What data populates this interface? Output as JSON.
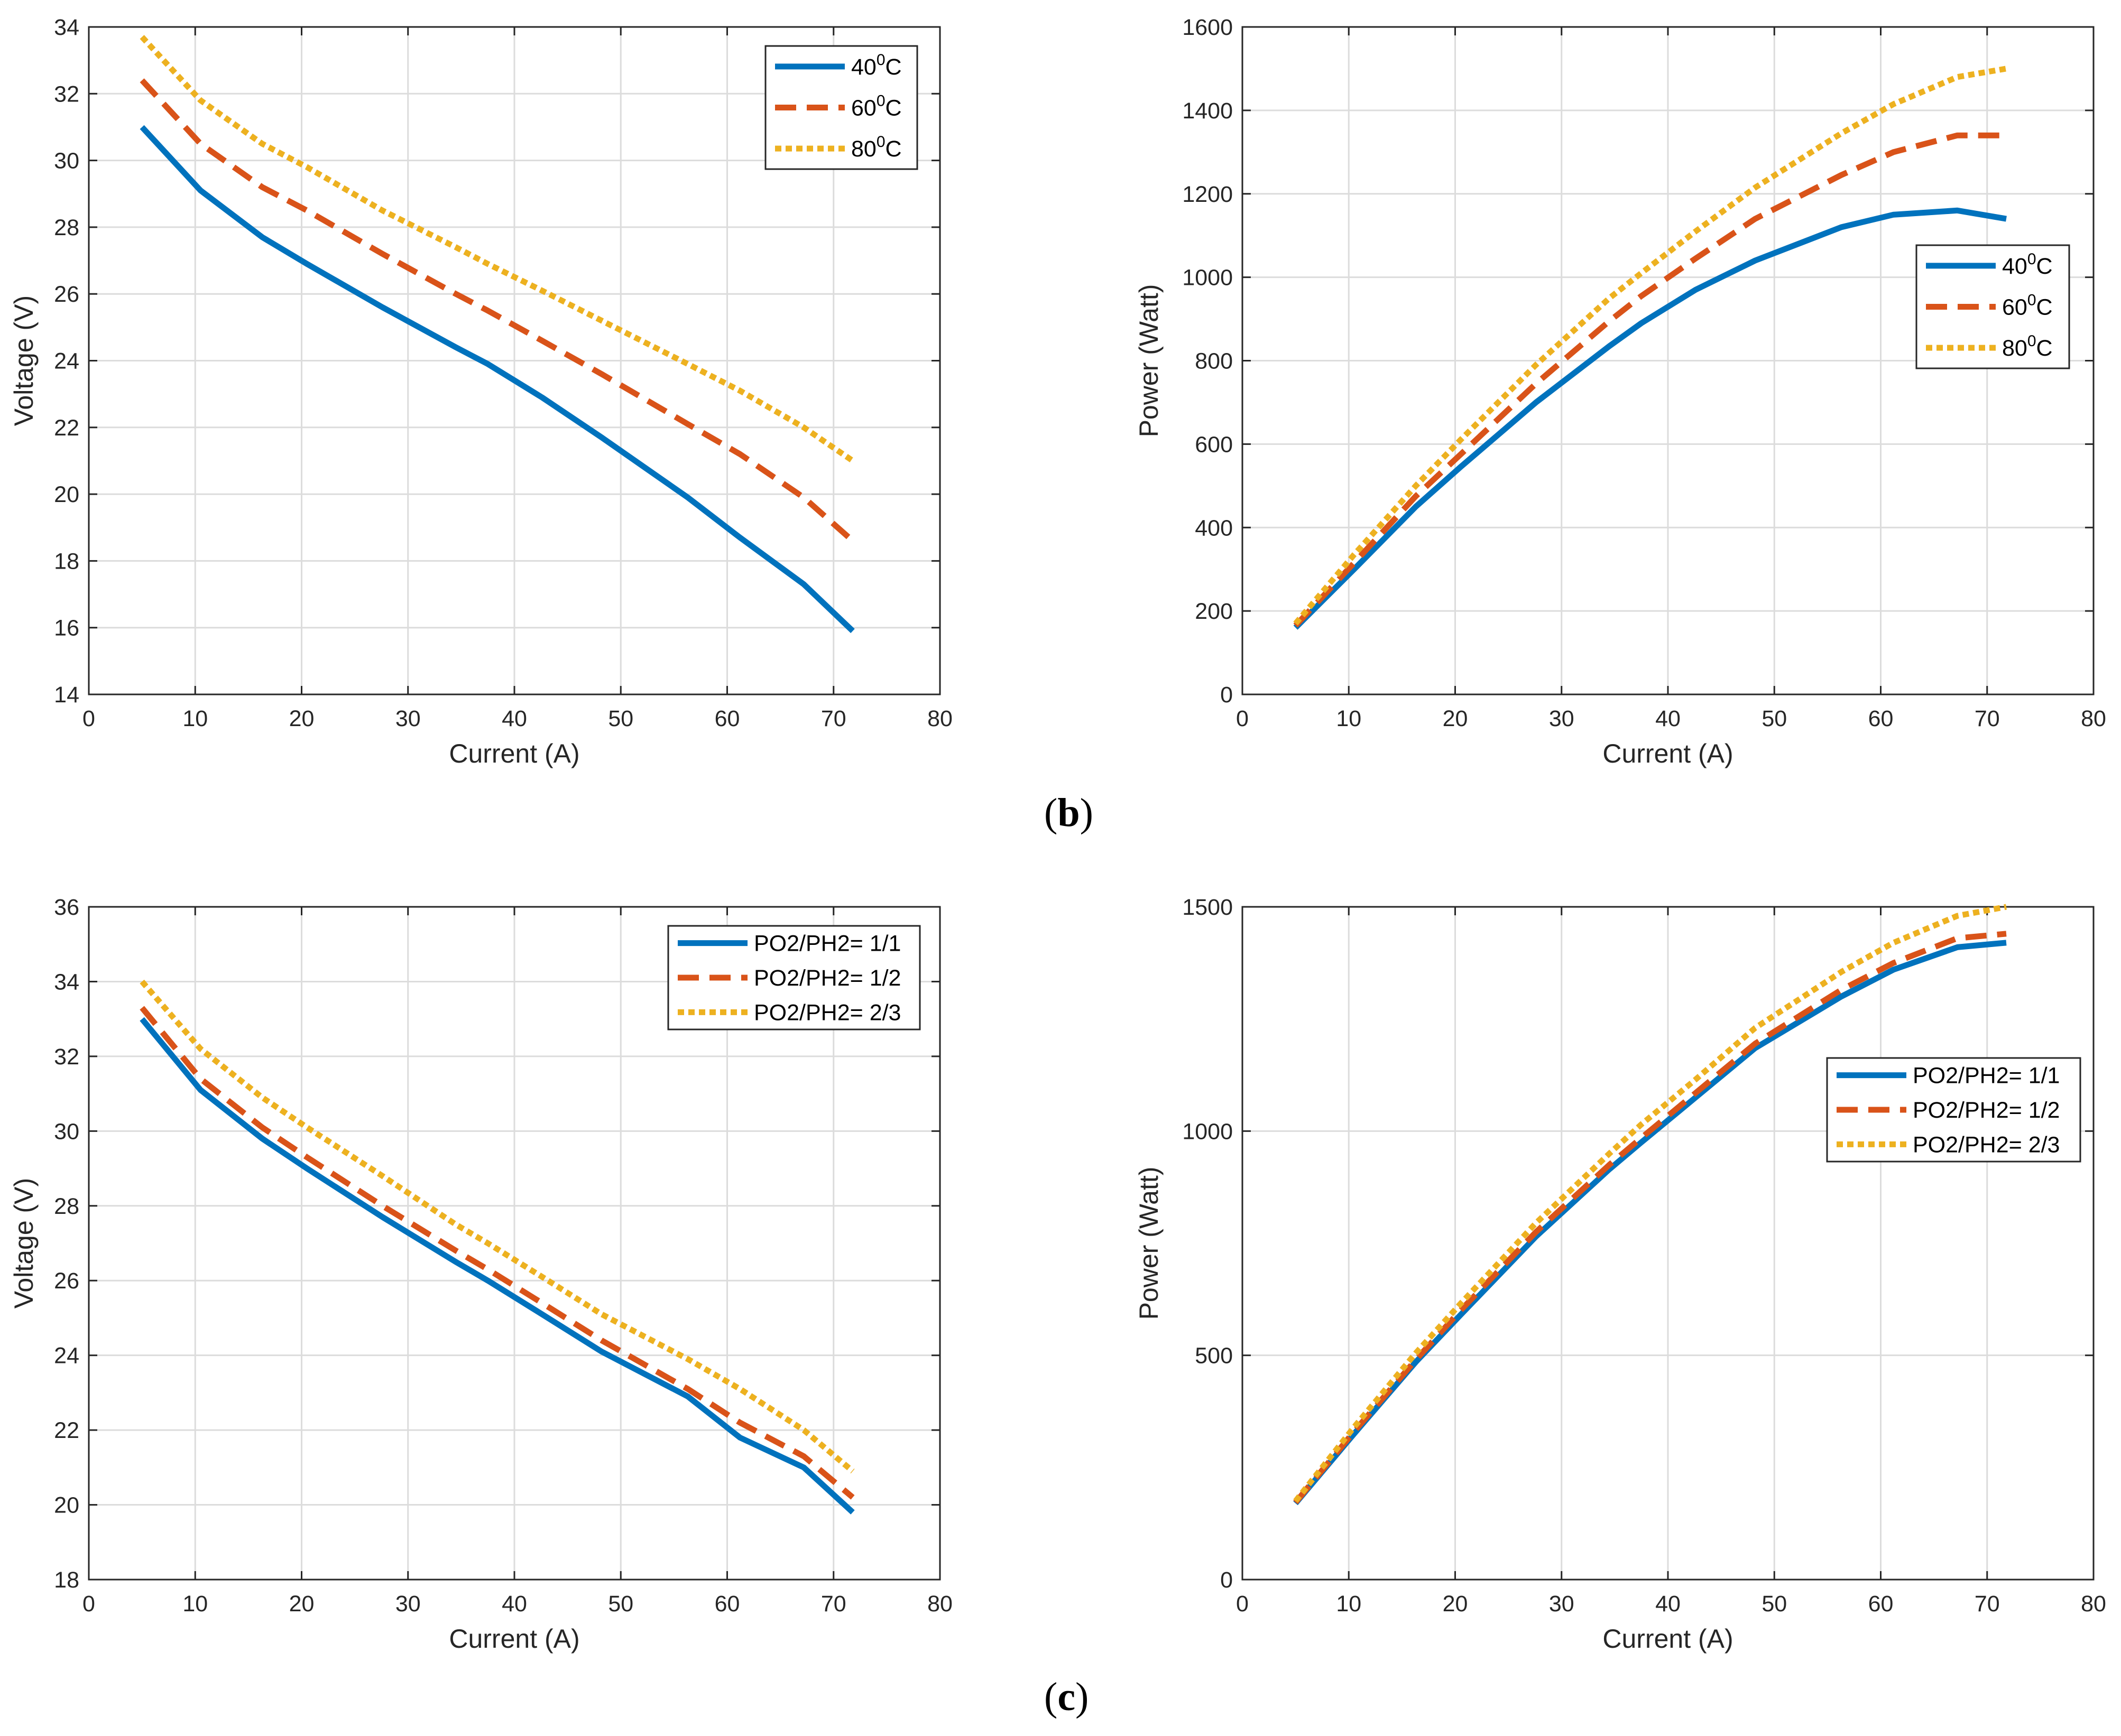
{
  "colors": {
    "s1": "#0072bd",
    "s2": "#d95319",
    "s3": "#edb120",
    "grid": "#dcdcdc",
    "axis": "#262626"
  },
  "captions": [
    {
      "open": "(",
      "letter": "b",
      "close": ")"
    },
    {
      "open": "(",
      "letter": "c",
      "close": ")"
    }
  ],
  "chart_data": [
    {
      "type": "line",
      "xlabel": "Current (A)",
      "ylabel": "Voltage (V)",
      "xlim": [
        0,
        80
      ],
      "ylim": [
        14,
        34
      ],
      "xticks": [
        0,
        10,
        20,
        30,
        40,
        50,
        60,
        70,
        80
      ],
      "yticks": [
        14,
        16,
        18,
        20,
        22,
        24,
        26,
        28,
        30,
        32,
        34
      ],
      "grid": true,
      "legend_position": "top-right",
      "x": [
        5,
        10.5,
        16.3,
        20.5,
        27.6,
        34.5,
        37.5,
        42.6,
        48.2,
        56.3,
        61.2,
        67.2,
        71.8
      ],
      "series": [
        {
          "base": "40",
          "sup": "0",
          "unit": "C",
          "style": "solid",
          "values": [
            31.0,
            29.1,
            27.7,
            26.9,
            25.6,
            24.4,
            23.9,
            22.9,
            21.7,
            19.9,
            18.7,
            17.3,
            15.9
          ]
        },
        {
          "base": "60",
          "sup": "0",
          "unit": "C",
          "style": "dashed",
          "values": [
            32.4,
            30.5,
            29.2,
            28.5,
            27.2,
            26.0,
            25.5,
            24.6,
            23.6,
            22.1,
            21.2,
            19.9,
            18.6
          ]
        },
        {
          "base": "80",
          "sup": "0",
          "unit": "C",
          "style": "dotted",
          "values": [
            33.7,
            31.8,
            30.5,
            29.8,
            28.5,
            27.4,
            26.9,
            26.1,
            25.2,
            23.9,
            23.1,
            22.0,
            21.0
          ]
        }
      ]
    },
    {
      "type": "line",
      "xlabel": "Current (A)",
      "ylabel": "Power (Watt)",
      "xlim": [
        0,
        80
      ],
      "ylim": [
        0,
        1600
      ],
      "xticks": [
        0,
        10,
        20,
        30,
        40,
        50,
        60,
        70,
        80
      ],
      "yticks": [
        0,
        200,
        400,
        600,
        800,
        1000,
        1200,
        1400,
        1600
      ],
      "grid": true,
      "legend_position": "right",
      "x": [
        5,
        10.5,
        16.3,
        20.5,
        27.6,
        34.5,
        37.5,
        42.6,
        48.2,
        56.3,
        61.2,
        67.2,
        71.8
      ],
      "series": [
        {
          "base": "40",
          "sup": "0",
          "unit": "C",
          "style": "solid",
          "values": [
            160,
            300,
            450,
            545,
            700,
            835,
            890,
            970,
            1040,
            1120,
            1150,
            1160,
            1140
          ]
        },
        {
          "base": "60",
          "sup": "0",
          "unit": "C",
          "style": "dashed",
          "values": [
            165,
            315,
            475,
            575,
            745,
            895,
            955,
            1045,
            1140,
            1245,
            1300,
            1340,
            1340
          ]
        },
        {
          "base": "80",
          "sup": "0",
          "unit": "C",
          "style": "dotted",
          "values": [
            170,
            335,
            500,
            610,
            790,
            950,
            1010,
            1110,
            1215,
            1345,
            1415,
            1480,
            1500
          ]
        }
      ]
    },
    {
      "type": "line",
      "xlabel": "Current (A)",
      "ylabel": "Voltage (V)",
      "xlim": [
        0,
        80
      ],
      "ylim": [
        18,
        36
      ],
      "xticks": [
        0,
        10,
        20,
        30,
        40,
        50,
        60,
        70,
        80
      ],
      "yticks": [
        18,
        20,
        22,
        24,
        26,
        28,
        30,
        32,
        34,
        36
      ],
      "grid": true,
      "legend_position": "top-right",
      "x": [
        5,
        10.5,
        16.3,
        20.5,
        27.6,
        34.5,
        37.5,
        42.6,
        48.2,
        56.3,
        61.2,
        67.2,
        71.8
      ],
      "series": [
        {
          "base": "PO2/PH2= 1/1",
          "sup": "",
          "unit": "",
          "style": "solid",
          "values": [
            33.0,
            31.1,
            29.8,
            29.0,
            27.7,
            26.5,
            26.0,
            25.1,
            24.1,
            22.9,
            21.8,
            21.0,
            19.8
          ]
        },
        {
          "base": "PO2/PH2= 1/2",
          "sup": "",
          "unit": "",
          "style": "dashed",
          "values": [
            33.3,
            31.4,
            30.1,
            29.3,
            28.0,
            26.8,
            26.3,
            25.4,
            24.4,
            23.1,
            22.2,
            21.3,
            20.2
          ]
        },
        {
          "base": "PO2/PH2= 2/3",
          "sup": "",
          "unit": "",
          "style": "dotted",
          "values": [
            34.0,
            32.2,
            30.9,
            30.1,
            28.8,
            27.5,
            27.0,
            26.1,
            25.1,
            23.9,
            23.1,
            22.0,
            20.9
          ]
        }
      ]
    },
    {
      "type": "line",
      "xlabel": "Current (A)",
      "ylabel": "Power (Watt)",
      "xlim": [
        0,
        80
      ],
      "ylim": [
        0,
        1500
      ],
      "xticks": [
        0,
        10,
        20,
        30,
        40,
        50,
        60,
        70,
        80
      ],
      "yticks": [
        0,
        500,
        1000,
        1500
      ],
      "grid": true,
      "legend_position": "right",
      "x": [
        5,
        10.5,
        16.3,
        20.5,
        27.6,
        34.5,
        37.5,
        42.6,
        48.2,
        56.3,
        61.2,
        67.2,
        71.8
      ],
      "series": [
        {
          "base": "PO2/PH2= 1/1",
          "sup": "",
          "unit": "",
          "style": "solid",
          "values": [
            170,
            325,
            485,
            590,
            765,
            915,
            975,
            1075,
            1185,
            1300,
            1360,
            1410,
            1420
          ]
        },
        {
          "base": "PO2/PH2= 1/2",
          "sup": "",
          "unit": "",
          "style": "dashed",
          "values": [
            172,
            330,
            490,
            600,
            775,
            925,
            985,
            1085,
            1195,
            1315,
            1375,
            1430,
            1440
          ]
        },
        {
          "base": "PO2/PH2= 2/3",
          "sup": "",
          "unit": "",
          "style": "dotted",
          "values": [
            175,
            340,
            505,
            615,
            795,
            950,
            1015,
            1115,
            1230,
            1355,
            1420,
            1480,
            1500
          ]
        }
      ]
    }
  ]
}
